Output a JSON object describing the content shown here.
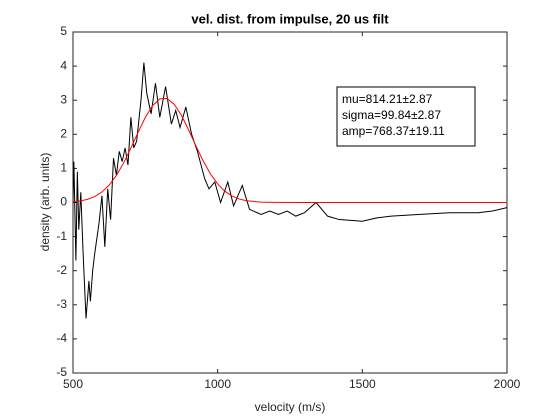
{
  "chart_data": {
    "type": "line",
    "title": "vel. dist. from impulse, 20 us filt",
    "xlabel": "velocity (m/s)",
    "ylabel": "density (arb. units)",
    "xlim": [
      500,
      2000
    ],
    "xticks": [
      500,
      1000,
      1500,
      2000
    ],
    "ylim": [
      -5,
      5
    ],
    "yticks": [
      -5,
      -4,
      -3,
      -2,
      -1,
      0,
      1,
      2,
      3,
      4,
      5
    ],
    "annotation": [
      "mu=814.21±2.87",
      "sigma=99.84±2.87",
      "amp=768.37±19.11"
    ],
    "series": [
      {
        "color": "#000000",
        "x": [
          500,
          503,
          510,
          515,
          520,
          527,
          535,
          545,
          555,
          560,
          568,
          575,
          590,
          600,
          610,
          620,
          630,
          640,
          650,
          660,
          670,
          680,
          690,
          700,
          710,
          720,
          735,
          745,
          755,
          770,
          785,
          800,
          820,
          840,
          855,
          870,
          890,
          910,
          930,
          955,
          970,
          990,
          1010,
          1035,
          1055,
          1085,
          1110,
          1150,
          1180,
          1210,
          1240,
          1270,
          1300,
          1340,
          1380,
          1420,
          1500,
          1550,
          1600,
          1700,
          1800,
          1900,
          1950,
          2000
        ],
        "values": [
          0,
          1.2,
          -1.7,
          0.9,
          -0.8,
          0.3,
          -1.5,
          -3.4,
          -2.3,
          -2.9,
          -2.0,
          -1.5,
          -0.6,
          0.2,
          -1.3,
          0.4,
          -0.5,
          1.3,
          0.8,
          1.5,
          1.2,
          1.6,
          1.1,
          2.5,
          1.6,
          1.8,
          3.0,
          4.1,
          3.2,
          2.6,
          3.5,
          2.5,
          3.4,
          2.3,
          2.7,
          2.2,
          2.8,
          2.0,
          1.5,
          0.7,
          0.4,
          0.6,
          0.0,
          0.6,
          -0.1,
          0.5,
          -0.2,
          -0.35,
          -0.25,
          -0.35,
          -0.25,
          -0.4,
          -0.3,
          0.0,
          -0.4,
          -0.5,
          -0.55,
          -0.45,
          -0.4,
          -0.35,
          -0.3,
          -0.3,
          -0.25,
          -0.15
        ]
      },
      {
        "color": "#ff0000",
        "x": [
          500,
          525,
          550,
          575,
          600,
          625,
          650,
          675,
          700,
          725,
          750,
          775,
          800,
          825,
          850,
          875,
          900,
          925,
          950,
          975,
          1000,
          1025,
          1050,
          1075,
          1100,
          1150,
          1200,
          1300,
          1500,
          2000
        ],
        "values": [
          0.022,
          0.046,
          0.092,
          0.173,
          0.307,
          0.509,
          0.794,
          1.16,
          1.595,
          2.059,
          2.495,
          2.842,
          3.039,
          3.052,
          2.879,
          2.551,
          2.123,
          1.659,
          1.218,
          0.84,
          0.544,
          0.331,
          0.189,
          0.101,
          0.051,
          0.011,
          0.002,
          0,
          0,
          0
        ]
      }
    ]
  }
}
